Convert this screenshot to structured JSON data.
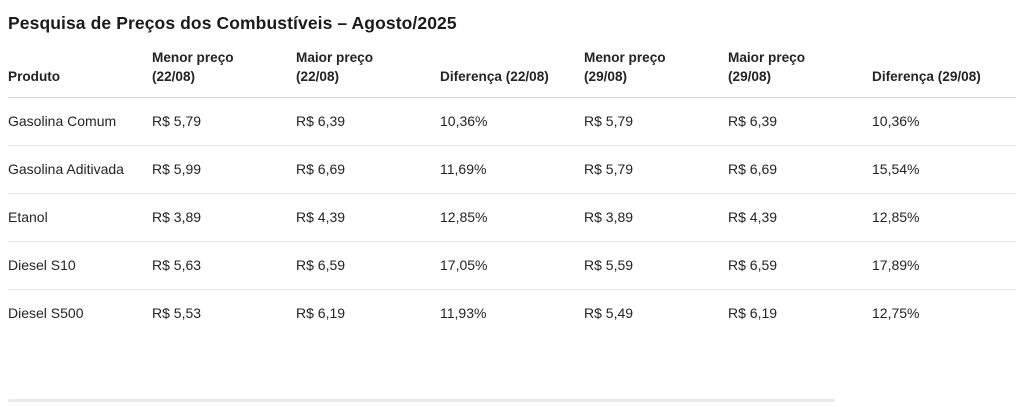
{
  "page": {
    "title": "Pesquisa de Preços dos Combustíveis – Agosto/2025"
  },
  "table": {
    "columns": [
      "Produto",
      "Menor preço (22/08)",
      "Maior preço (22/08)",
      "Diferença (22/08)",
      "Menor preço (29/08)",
      "Maior preço (29/08)",
      "Diferença (29/08)"
    ],
    "rows": [
      [
        "Gasolina Comum",
        "R$ 5,79",
        "R$ 6,39",
        "10,36%",
        "R$ 5,79",
        "R$ 6,39",
        "10,36%"
      ],
      [
        "Gasolina Aditivada",
        "R$ 5,99",
        "R$ 6,69",
        "11,69%",
        "R$ 5,79",
        "R$ 6,69",
        "15,54%"
      ],
      [
        "Etanol",
        "R$ 3,89",
        "R$ 4,39",
        "12,85%",
        "R$ 3,89",
        "R$ 4,39",
        "12,85%"
      ],
      [
        "Diesel S10",
        "R$ 5,63",
        "R$ 6,59",
        "17,05%",
        "R$ 5,59",
        "R$ 6,59",
        "17,89%"
      ],
      [
        "Diesel S500",
        "R$ 5,53",
        "R$ 6,19",
        "11,93%",
        "R$ 5,49",
        "R$ 6,19",
        "12,75%"
      ]
    ]
  }
}
